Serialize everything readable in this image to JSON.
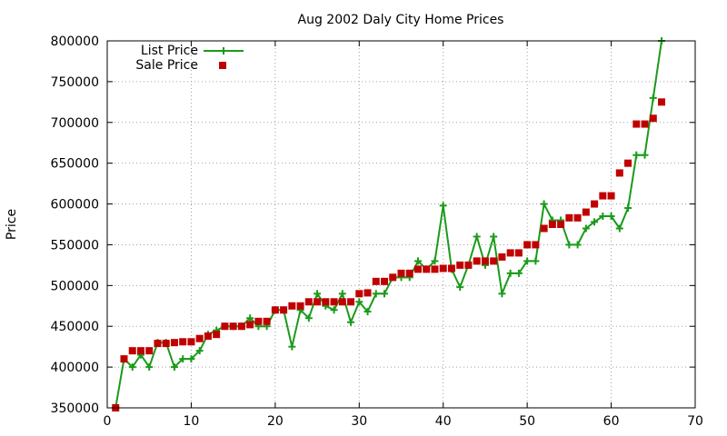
{
  "chart_data": {
    "type": "line",
    "title": "Aug 2002 Daly City Home Prices",
    "xlabel": "",
    "ylabel": "Price",
    "xlim": [
      0,
      70
    ],
    "ylim": [
      350000,
      800000
    ],
    "x_ticks": [
      0,
      10,
      20,
      30,
      40,
      50,
      60,
      70
    ],
    "y_ticks": [
      350000,
      400000,
      450000,
      500000,
      550000,
      600000,
      650000,
      700000,
      750000,
      800000
    ],
    "grid": true,
    "legend_position": "top-left",
    "series": [
      {
        "name": "List Price",
        "style": "lines+crosses",
        "color": "#1a9b1a",
        "x": [
          1,
          2,
          3,
          4,
          5,
          6,
          7,
          8,
          9,
          10,
          11,
          12,
          13,
          14,
          15,
          16,
          17,
          18,
          19,
          20,
          21,
          22,
          23,
          24,
          25,
          26,
          27,
          28,
          29,
          30,
          31,
          32,
          33,
          34,
          35,
          36,
          37,
          38,
          39,
          40,
          41,
          42,
          43,
          44,
          45,
          46,
          47,
          48,
          49,
          50,
          51,
          52,
          53,
          54,
          55,
          56,
          57,
          58,
          59,
          60,
          61,
          62,
          63,
          64,
          65,
          66
        ],
        "y": [
          350000,
          410000,
          400000,
          415000,
          400000,
          430000,
          430000,
          400000,
          410000,
          410000,
          420000,
          440000,
          445000,
          450000,
          450000,
          450000,
          460000,
          450000,
          450000,
          470000,
          470000,
          425000,
          470000,
          460000,
          490000,
          475000,
          470000,
          490000,
          455000,
          480000,
          468000,
          490000,
          490000,
          510000,
          510000,
          510000,
          530000,
          520000,
          530000,
          598000,
          520000,
          498000,
          525000,
          560000,
          525000,
          560000,
          490000,
          515000,
          515000,
          530000,
          530000,
          600000,
          580000,
          580000,
          550000,
          550000,
          570000,
          578000,
          585000,
          585000,
          570000,
          595000,
          660000,
          660000,
          730000,
          800000
        ]
      },
      {
        "name": "Sale Price",
        "style": "points",
        "color": "#c00000",
        "x": [
          1,
          2,
          3,
          4,
          5,
          6,
          7,
          8,
          9,
          10,
          11,
          12,
          13,
          14,
          15,
          16,
          17,
          18,
          19,
          20,
          21,
          22,
          23,
          24,
          25,
          26,
          27,
          28,
          29,
          30,
          31,
          32,
          33,
          34,
          35,
          36,
          37,
          38,
          39,
          40,
          41,
          42,
          43,
          44,
          45,
          46,
          47,
          48,
          49,
          50,
          51,
          52,
          53,
          54,
          55,
          56,
          57,
          58,
          59,
          60,
          61,
          62,
          63,
          64,
          65,
          66
        ],
        "y": [
          350000,
          410000,
          420000,
          420000,
          420000,
          429000,
          429000,
          430000,
          431000,
          431000,
          435000,
          438000,
          440000,
          450000,
          450000,
          450000,
          452000,
          456000,
          456000,
          470000,
          470000,
          475000,
          475000,
          480000,
          480000,
          480000,
          480000,
          480000,
          480000,
          490000,
          491000,
          505000,
          505000,
          510000,
          515000,
          515000,
          520000,
          520000,
          520000,
          521000,
          521000,
          525000,
          525000,
          530000,
          530000,
          530000,
          535000,
          540000,
          540000,
          550000,
          550000,
          570000,
          575000,
          575000,
          583000,
          583000,
          590000,
          600000,
          610000,
          610000,
          638000,
          650000,
          698000,
          698000,
          705000,
          725000
        ]
      }
    ]
  }
}
